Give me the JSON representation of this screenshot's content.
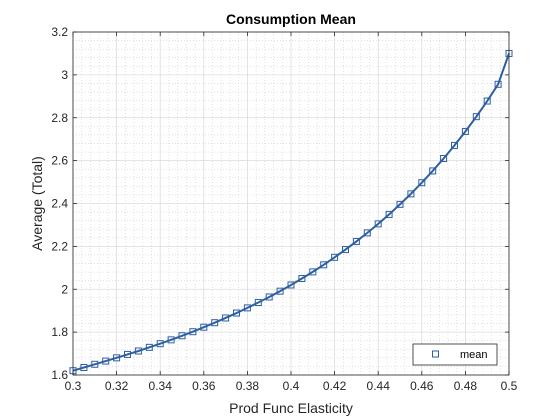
{
  "chart_data": {
    "type": "line",
    "title": "Consumption Mean",
    "xlabel": "Prod Func Elasticity",
    "ylabel": "Average (Total)",
    "xlim": [
      0.3,
      0.5
    ],
    "ylim": [
      1.6,
      3.2
    ],
    "xticks": [
      0.3,
      0.32,
      0.34,
      0.36,
      0.38,
      0.4,
      0.42,
      0.44,
      0.46,
      0.48,
      0.5
    ],
    "xtick_labels": [
      "0.3",
      "0.32",
      "0.34",
      "0.36",
      "0.38",
      "0.4",
      "0.42",
      "0.44",
      "0.46",
      "0.48",
      "0.5"
    ],
    "yticks": [
      1.6,
      1.8,
      2.0,
      2.2,
      2.4,
      2.6,
      2.8,
      3.0,
      3.2
    ],
    "ytick_labels": [
      "1.6",
      "1.8",
      "2",
      "2.2",
      "2.4",
      "2.6",
      "2.8",
      "3",
      "3.2"
    ],
    "grid": true,
    "minor_grid": true,
    "legend_position": "bottom-right",
    "series": [
      {
        "name": "mean",
        "color": "#2e5fa1",
        "marker": "square",
        "x": [
          0.3,
          0.305,
          0.31,
          0.315,
          0.32,
          0.325,
          0.33,
          0.335,
          0.34,
          0.345,
          0.35,
          0.355,
          0.36,
          0.365,
          0.37,
          0.375,
          0.38,
          0.385,
          0.39,
          0.395,
          0.4,
          0.405,
          0.41,
          0.415,
          0.42,
          0.425,
          0.43,
          0.435,
          0.44,
          0.445,
          0.45,
          0.455,
          0.46,
          0.465,
          0.47,
          0.475,
          0.48,
          0.485,
          0.49,
          0.495,
          0.5
        ],
        "y": [
          1.62,
          1.635,
          1.65,
          1.665,
          1.68,
          1.696,
          1.712,
          1.729,
          1.746,
          1.764,
          1.783,
          1.802,
          1.823,
          1.844,
          1.866,
          1.889,
          1.913,
          1.938,
          1.964,
          1.991,
          2.02,
          2.05,
          2.081,
          2.114,
          2.149,
          2.185,
          2.223,
          2.263,
          2.305,
          2.349,
          2.396,
          2.445,
          2.497,
          2.552,
          2.61,
          2.671,
          2.736,
          2.805,
          2.878,
          2.956,
          3.1
        ]
      }
    ]
  }
}
